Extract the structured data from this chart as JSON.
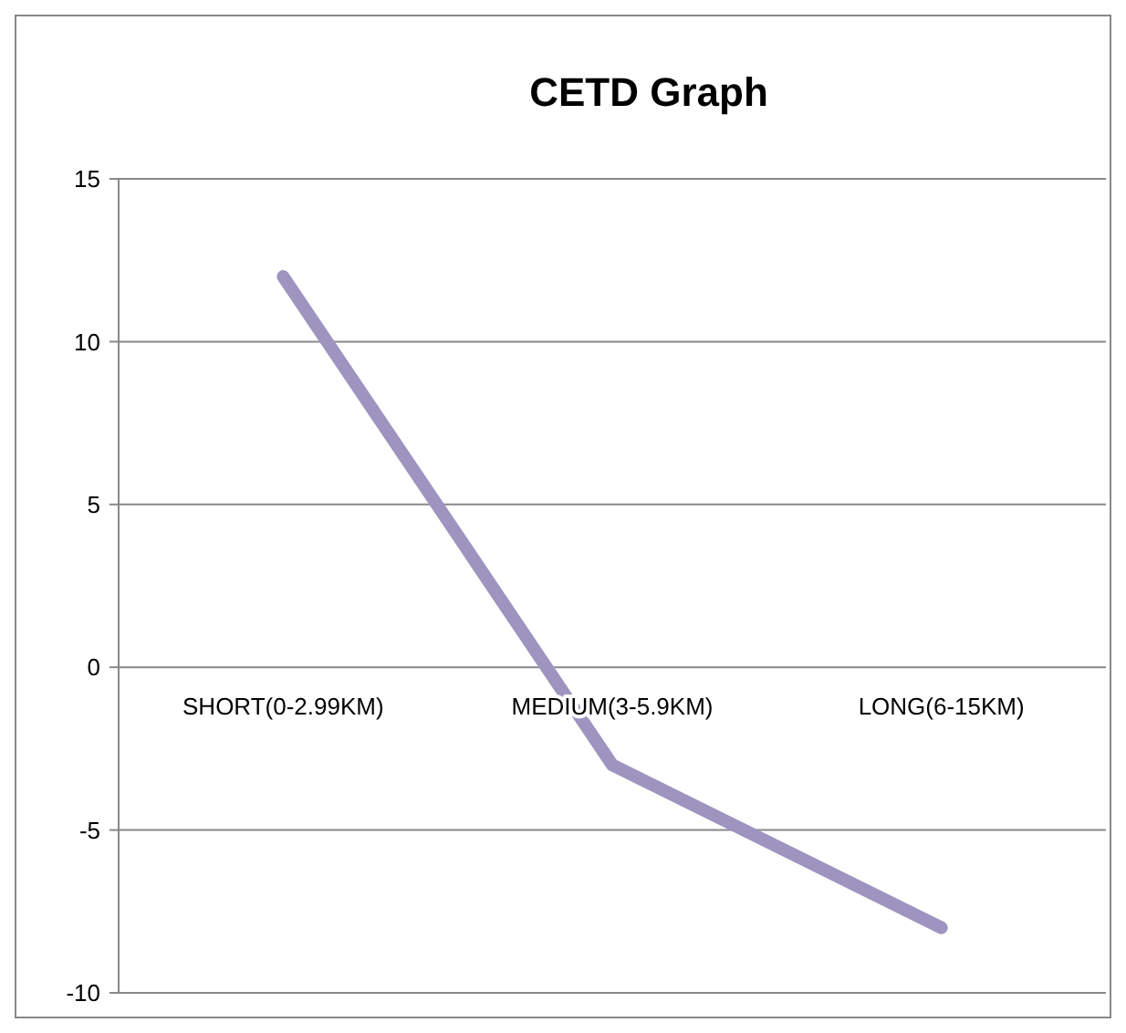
{
  "chart_data": {
    "type": "line",
    "title": "CETD Graph",
    "categories": [
      "SHORT(0-2.99KM)",
      "MEDIUM(3-5.9KM)",
      "LONG(6-15KM)"
    ],
    "series": [
      {
        "color": "#9e94c0",
        "values": [
          12,
          -3,
          -8
        ]
      }
    ],
    "ylim": [
      -10,
      15
    ],
    "yticks": [
      -10,
      -5,
      0,
      5,
      10,
      15
    ],
    "grid": "y",
    "line_style": "solid"
  }
}
